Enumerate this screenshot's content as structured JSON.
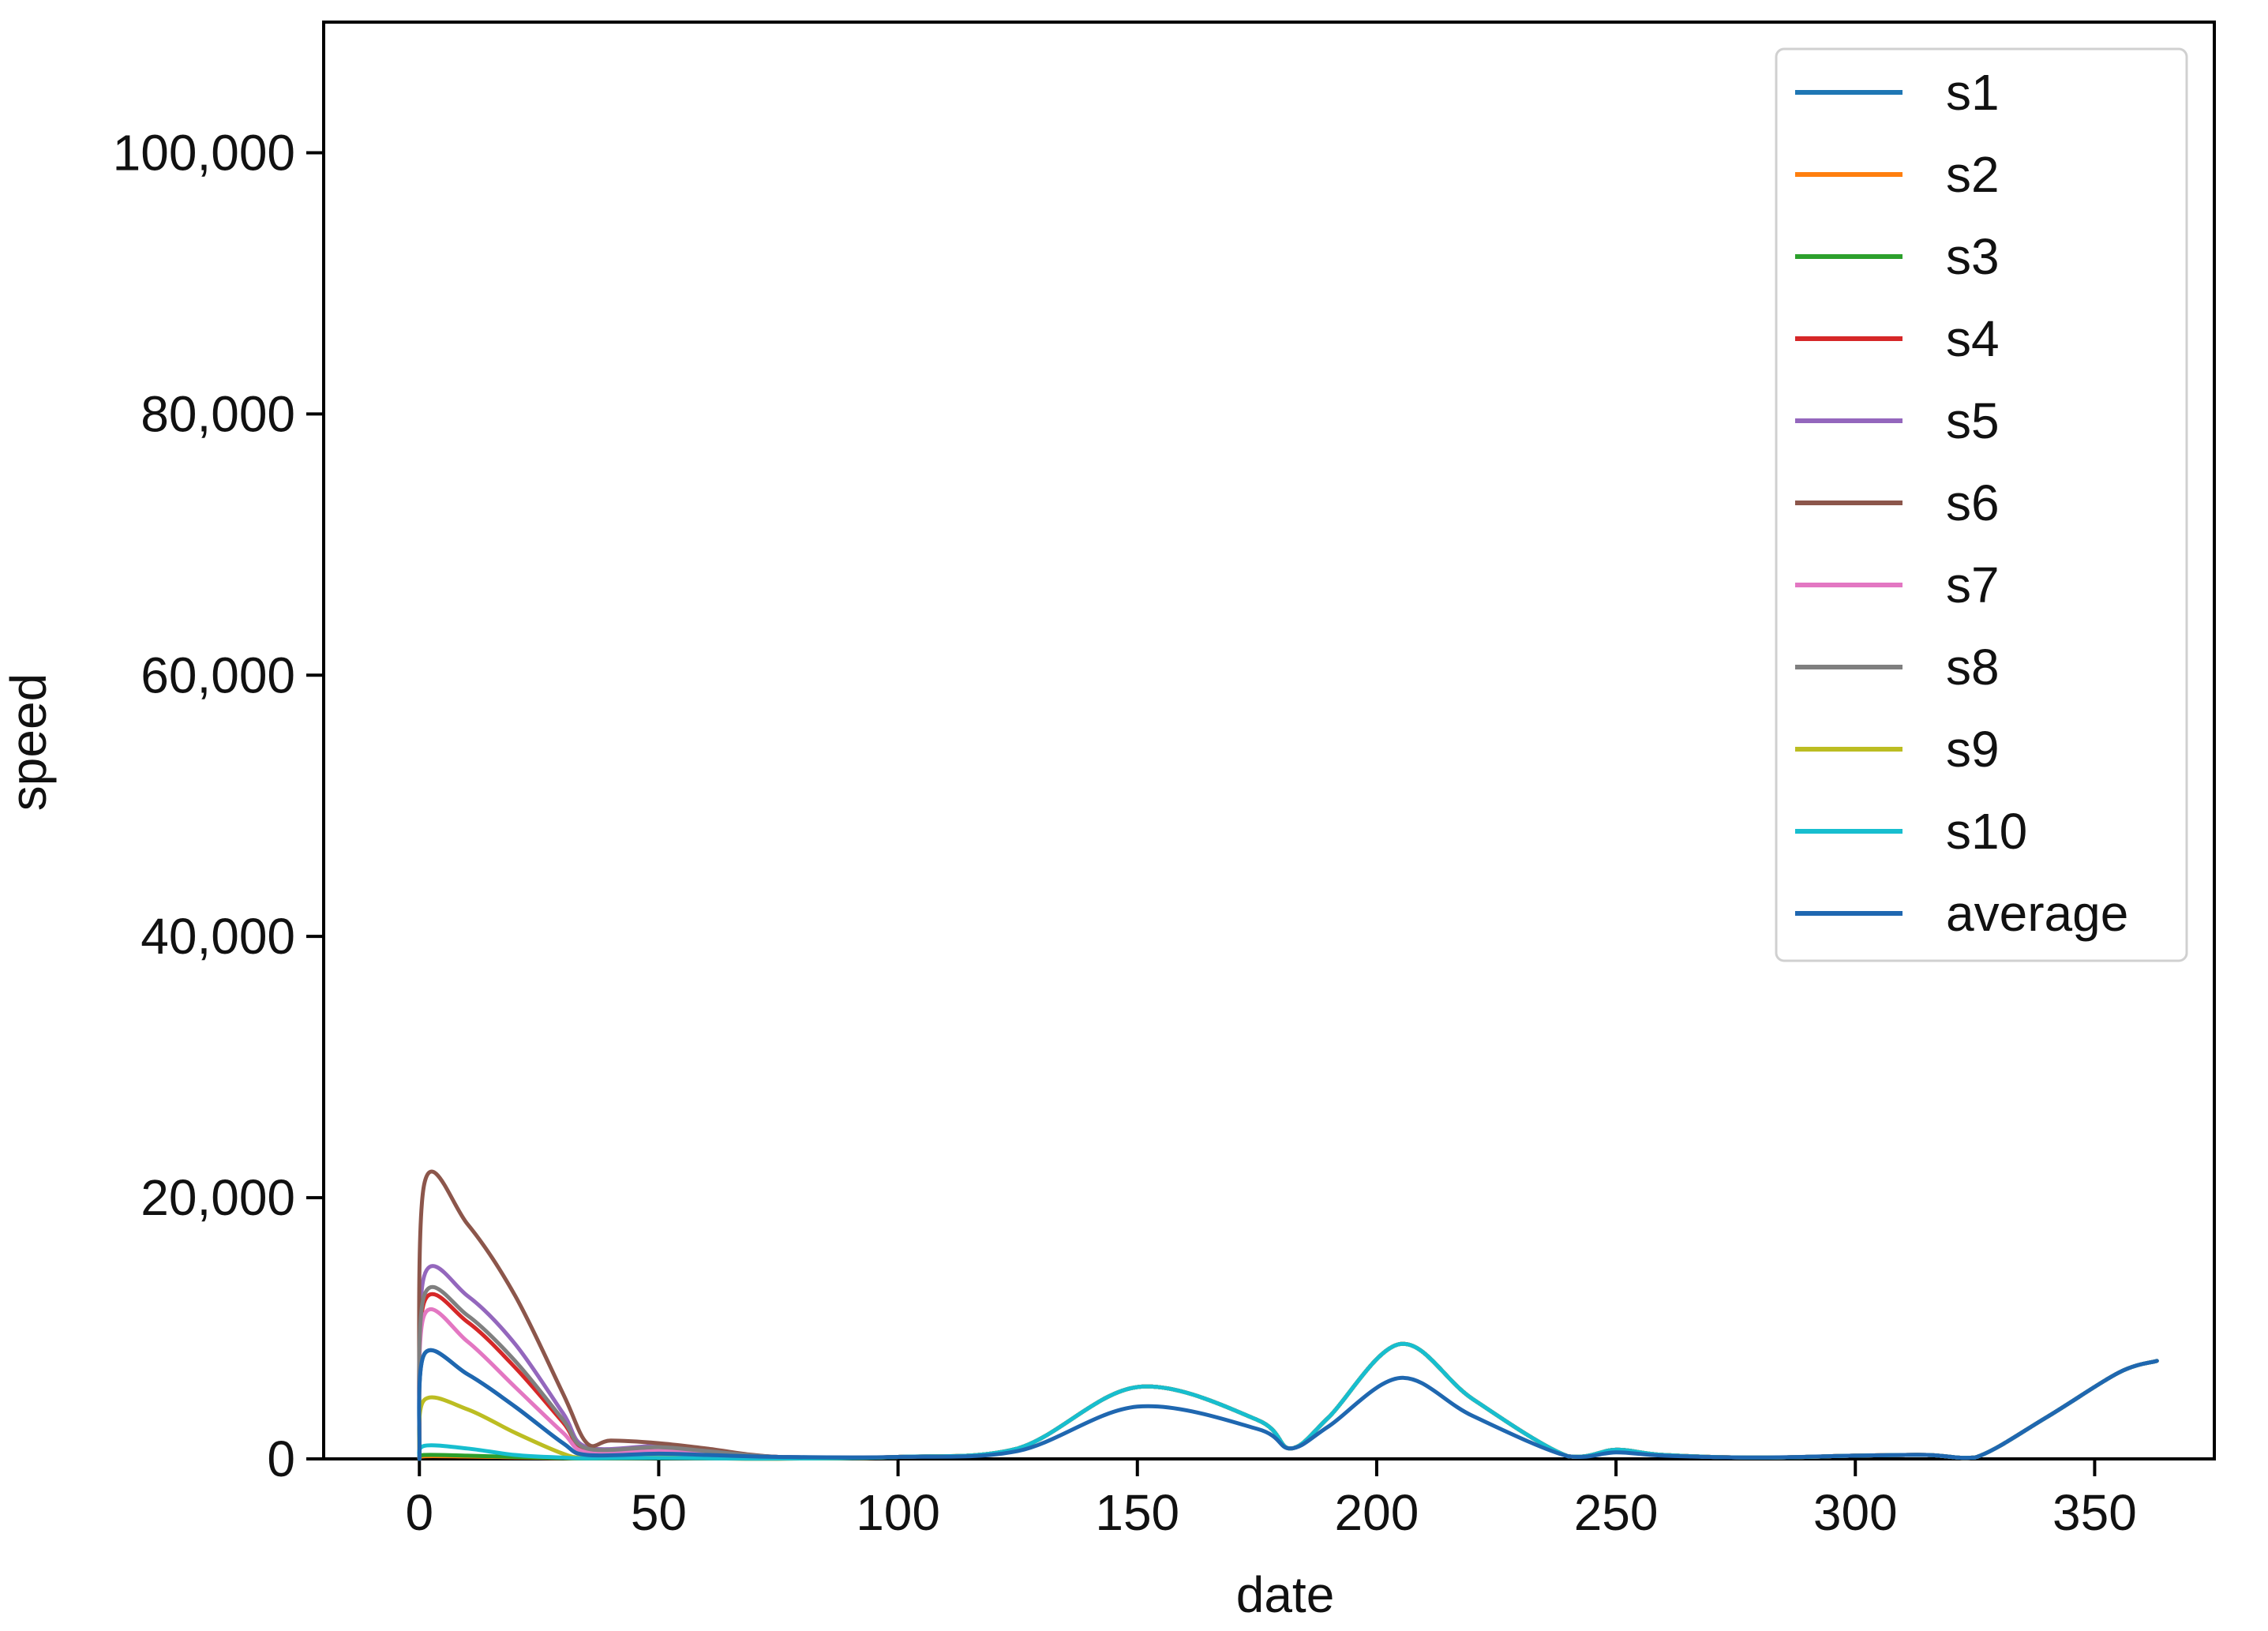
{
  "chart_data": {
    "type": "line",
    "xlabel": "date",
    "ylabel": "speed",
    "xlim": [
      -20,
      375
    ],
    "ylim": [
      0,
      110000
    ],
    "x_ticks": [
      0,
      50,
      100,
      150,
      200,
      250,
      300,
      350
    ],
    "x_tick_labels": [
      "0",
      "50",
      "100",
      "150",
      "200",
      "250",
      "300",
      "350"
    ],
    "y_ticks": [
      0,
      20000,
      40000,
      60000,
      80000,
      100000
    ],
    "y_tick_labels": [
      "0",
      "20,000",
      "40,000",
      "60,000",
      "80,000",
      "100,000"
    ],
    "grid": false,
    "legend_position": "top-right",
    "series": [
      {
        "name": "s1",
        "color": "#1f77b4",
        "x": [
          0,
          1,
          10,
          20,
          30,
          35,
          50,
          60,
          75,
          100,
          125,
          150,
          175,
          182,
          190,
          205,
          220,
          240,
          250,
          260,
          280,
          300,
          315,
          325,
          340,
          355,
          363
        ],
        "values": [
          0,
          8000,
          6500,
          4000,
          1200,
          300,
          400,
          300,
          150,
          150,
          800,
          5500,
          3000,
          800,
          3200,
          8800,
          4600,
          200,
          700,
          300,
          100,
          250,
          300,
          100,
          3200,
          6600,
          7500
        ]
      },
      {
        "name": "s2",
        "color": "#ff7f0e",
        "x": [
          0,
          1,
          10,
          20,
          30,
          35,
          50,
          60,
          75,
          100,
          125,
          150,
          175,
          182,
          190,
          205,
          220,
          240,
          250,
          260,
          280,
          300,
          315,
          325,
          340,
          355,
          363
        ],
        "values": [
          0,
          200,
          180,
          120,
          60,
          30,
          60,
          40,
          20,
          150,
          800,
          5500,
          3000,
          800,
          3200,
          8800,
          4600,
          200,
          700,
          300,
          100,
          250,
          300,
          100,
          3200,
          6600,
          7500
        ]
      },
      {
        "name": "s3",
        "color": "#2ca02c",
        "x": [
          0,
          1,
          10,
          20,
          30,
          35,
          50,
          60,
          75,
          100,
          125,
          150,
          175,
          182,
          190,
          205,
          220,
          240,
          250,
          260,
          280,
          300,
          315,
          325,
          340,
          355,
          363
        ],
        "values": [
          0,
          300,
          250,
          150,
          60,
          30,
          60,
          40,
          20,
          150,
          800,
          5500,
          3000,
          800,
          3200,
          8800,
          4600,
          200,
          700,
          300,
          100,
          250,
          300,
          100,
          3200,
          6600,
          7500
        ]
      },
      {
        "name": "s4",
        "color": "#d62728",
        "x": [
          0,
          1,
          10,
          20,
          30,
          35,
          50,
          60,
          75,
          100,
          125,
          150,
          175,
          182,
          190,
          205,
          220,
          240,
          250,
          260,
          280,
          300,
          315,
          325,
          340,
          355,
          363
        ],
        "values": [
          0,
          12000,
          10500,
          7000,
          2800,
          700,
          900,
          600,
          150,
          150,
          800,
          5500,
          3000,
          800,
          3200,
          8800,
          4600,
          200,
          700,
          300,
          100,
          250,
          300,
          100,
          3200,
          6600,
          7500
        ]
      },
      {
        "name": "s5",
        "color": "#9467bd",
        "x": [
          0,
          1,
          10,
          20,
          30,
          35,
          50,
          60,
          75,
          100,
          125,
          150,
          175,
          182,
          190,
          205,
          220,
          240,
          250,
          260,
          280,
          300,
          315,
          325,
          340,
          355,
          363
        ],
        "values": [
          0,
          14000,
          12500,
          8800,
          3500,
          900,
          1000,
          700,
          150,
          150,
          800,
          5500,
          3000,
          800,
          3200,
          8800,
          4600,
          200,
          700,
          300,
          100,
          250,
          300,
          100,
          3200,
          6600,
          7500
        ]
      },
      {
        "name": "s6",
        "color": "#8c564b",
        "x": [
          0,
          1,
          10,
          20,
          30,
          35,
          40,
          50,
          60,
          75,
          100,
          125,
          150,
          175,
          182,
          190,
          205,
          220,
          240,
          250,
          260,
          280,
          300,
          315,
          325,
          340,
          355,
          363
        ],
        "values": [
          0,
          21000,
          18000,
          12500,
          5000,
          1200,
          1400,
          1200,
          800,
          150,
          150,
          800,
          5500,
          3000,
          800,
          3200,
          8800,
          4600,
          200,
          700,
          300,
          100,
          250,
          300,
          100,
          3200,
          6600,
          7500
        ]
      },
      {
        "name": "s7",
        "color": "#e377c2",
        "x": [
          0,
          1,
          10,
          20,
          30,
          35,
          50,
          60,
          75,
          100,
          125,
          150,
          175,
          182,
          190,
          205,
          220,
          240,
          250,
          260,
          280,
          300,
          315,
          325,
          340,
          355,
          363
        ],
        "values": [
          0,
          11000,
          9000,
          5500,
          2000,
          500,
          600,
          400,
          150,
          150,
          800,
          5500,
          3000,
          800,
          3200,
          8800,
          4600,
          200,
          700,
          300,
          100,
          250,
          300,
          100,
          3200,
          6600,
          7500
        ]
      },
      {
        "name": "s8",
        "color": "#7f7f7f",
        "x": [
          0,
          1,
          10,
          20,
          30,
          35,
          50,
          60,
          75,
          100,
          125,
          150,
          175,
          182,
          190,
          205,
          220,
          240,
          250,
          260,
          280,
          300,
          315,
          325,
          340,
          355,
          363
        ],
        "values": [
          0,
          12500,
          11000,
          7500,
          3000,
          800,
          900,
          600,
          150,
          150,
          800,
          5500,
          3000,
          800,
          3200,
          8800,
          4600,
          200,
          700,
          300,
          100,
          250,
          300,
          100,
          3200,
          6600,
          7500
        ]
      },
      {
        "name": "s9",
        "color": "#bcbd22",
        "x": [
          0,
          1,
          10,
          20,
          30,
          35,
          50,
          60,
          75,
          100,
          125,
          150,
          175,
          182,
          190,
          205,
          220,
          240,
          250,
          260,
          280,
          300,
          315,
          325,
          340,
          355,
          363
        ],
        "values": [
          0,
          4500,
          3800,
          2000,
          400,
          100,
          150,
          100,
          50,
          150,
          800,
          5500,
          3000,
          800,
          3200,
          8800,
          4600,
          200,
          700,
          300,
          100,
          250,
          300,
          100,
          3200,
          6600,
          7500
        ]
      },
      {
        "name": "s10",
        "color": "#17becf",
        "x": [
          0,
          1,
          10,
          20,
          30,
          35,
          50,
          60,
          75,
          100,
          125,
          150,
          175,
          182,
          190,
          205,
          220,
          240,
          250,
          260,
          280,
          300,
          315,
          325,
          340,
          355,
          363
        ],
        "values": [
          0,
          1000,
          800,
          300,
          100,
          50,
          80,
          50,
          30,
          150,
          800,
          5500,
          3000,
          800,
          3200,
          8800,
          4600,
          200,
          700,
          300,
          100,
          250,
          300,
          100,
          3200,
          6600,
          7500
        ]
      },
      {
        "name": "average",
        "color": "#1f67b0",
        "x": [
          0,
          1,
          10,
          20,
          30,
          35,
          50,
          60,
          75,
          100,
          125,
          150,
          175,
          182,
          190,
          205,
          220,
          240,
          250,
          260,
          280,
          300,
          315,
          325,
          340,
          355,
          363
        ],
        "values": [
          0,
          8000,
          6500,
          4000,
          1200,
          300,
          400,
          300,
          150,
          150,
          600,
          4000,
          2300,
          800,
          2500,
          6200,
          3300,
          200,
          500,
          250,
          100,
          250,
          300,
          100,
          3200,
          6600,
          7500
        ]
      }
    ]
  }
}
